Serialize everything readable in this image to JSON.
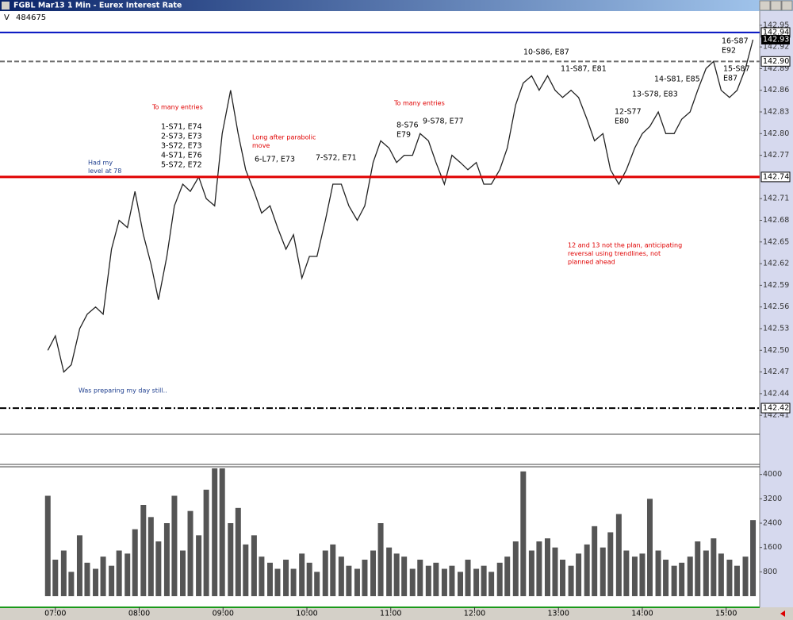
{
  "window": {
    "title": "FGBL Mar13 1 Min - Eurex Interest Rate",
    "row_letter": "V",
    "row_value": "484675"
  },
  "chart_data": [
    {
      "type": "line",
      "color": "#222222",
      "x": [
        6.91,
        7.0,
        7.1,
        7.19,
        7.29,
        7.38,
        7.48,
        7.57,
        7.67,
        7.76,
        7.86,
        7.95,
        8.05,
        8.14,
        8.23,
        8.33,
        8.42,
        8.52,
        8.61,
        8.71,
        8.8,
        8.9,
        8.99,
        9.09,
        9.18,
        9.27,
        9.37,
        9.46,
        9.56,
        9.65,
        9.75,
        9.84,
        9.94,
        10.03,
        10.12,
        10.22,
        10.31,
        10.41,
        10.5,
        10.6,
        10.69,
        10.79,
        10.88,
        10.98,
        11.07,
        11.16,
        11.26,
        11.35,
        11.45,
        11.54,
        11.64,
        11.73,
        11.83,
        11.92,
        12.02,
        12.11,
        12.2,
        12.3,
        12.39,
        12.49,
        12.58,
        12.68,
        12.77,
        12.87,
        12.96,
        13.05,
        13.15,
        13.24,
        13.34,
        13.43,
        13.53,
        13.62,
        13.72,
        13.81,
        13.91,
        14.0,
        14.09,
        14.19,
        14.28,
        14.38,
        14.47,
        14.57,
        14.66,
        14.76,
        14.85,
        14.94,
        15.04,
        15.13,
        15.23,
        15.32
      ],
      "values": [
        142.5,
        142.52,
        142.47,
        142.48,
        142.53,
        142.55,
        142.56,
        142.55,
        142.64,
        142.68,
        142.67,
        142.72,
        142.66,
        142.62,
        142.57,
        142.63,
        142.7,
        142.73,
        142.72,
        142.74,
        142.71,
        142.7,
        142.8,
        142.86,
        142.8,
        142.75,
        142.72,
        142.69,
        142.7,
        142.67,
        142.64,
        142.66,
        142.6,
        142.63,
        142.63,
        142.68,
        142.73,
        142.73,
        142.7,
        142.68,
        142.7,
        142.76,
        142.79,
        142.78,
        142.76,
        142.77,
        142.77,
        142.8,
        142.79,
        142.76,
        142.73,
        142.77,
        142.76,
        142.75,
        142.76,
        142.73,
        142.73,
        142.75,
        142.78,
        142.84,
        142.87,
        142.88,
        142.86,
        142.88,
        142.86,
        142.85,
        142.86,
        142.85,
        142.82,
        142.79,
        142.8,
        142.75,
        142.73,
        142.75,
        142.78,
        142.8,
        142.81,
        142.83,
        142.8,
        142.8,
        142.82,
        142.83,
        142.86,
        142.89,
        142.9,
        142.86,
        142.85,
        142.86,
        142.89,
        142.93
      ],
      "xlim": [
        6.34,
        15.4
      ],
      "ylim": [
        142.386,
        142.952
      ],
      "yticks": [
        142.95,
        142.92,
        142.89,
        {
          "value": 142.86,
          "label": "142.86"
        },
        142.83,
        {
          "value": 142.8,
          "label": "142.80"
        },
        142.77,
        142.71,
        142.68,
        142.65,
        142.62,
        142.59,
        142.56,
        142.53,
        {
          "value": 142.5,
          "label": "142.50"
        },
        142.47,
        142.44,
        142.41
      ],
      "last_price": 142.93,
      "levels": [
        {
          "value": 142.94,
          "color": "#0010c0",
          "style": "solid"
        },
        {
          "value": {
            "value": 142.9,
            "label": "142.90"
          },
          "color": "#707070",
          "style": "dashed"
        },
        {
          "value": 142.74,
          "color": "#e00000",
          "style": "thick"
        },
        {
          "value": 142.42,
          "color": "#000000",
          "style": "dashdot"
        }
      ],
      "annotations": [
        {
          "lines": [
            "To many entries"
          ],
          "color": "#e00000"
        },
        {
          "lines": [
            "1-S71, E74",
            "2-S73, E73",
            "3-S72, E73",
            "4-S71, E76",
            "5-S72, E72"
          ],
          "color": "#000000"
        },
        {
          "lines": [
            "Had my",
            "level at 78"
          ],
          "color": "#1f3f8f"
        },
        {
          "lines": [
            "Long after parabolic",
            "move"
          ],
          "color": "#e00000"
        },
        {
          "lines": [
            "6-L77, E73"
          ],
          "color": "#000000"
        },
        {
          "lines": [
            "7-S72, E71"
          ],
          "color": "#000000"
        },
        {
          "lines": [
            "To many entries"
          ],
          "color": "#e00000"
        },
        {
          "lines": [
            "8-S76",
            "E79"
          ],
          "color": "#000000"
        },
        {
          "lines": [
            "9-S78, E77"
          ],
          "color": "#000000"
        },
        {
          "lines": [
            "10-S86, E87"
          ],
          "color": "#000000"
        },
        {
          "lines": [
            "11-S87, E81"
          ],
          "color": "#000000"
        },
        {
          "lines": [
            "12-S77",
            "E80"
          ],
          "color": "#000000"
        },
        {
          "lines": [
            "13-S78, E83"
          ],
          "color": "#000000"
        },
        {
          "lines": [
            "14-S81, E85"
          ],
          "color": "#000000"
        },
        {
          "lines": [
            "16-S87",
            "E92"
          ],
          "color": "#000000"
        },
        {
          "lines": [
            "15-S87",
            "E87"
          ],
          "color": "#000000"
        },
        {
          "lines": [
            "12 and 13 not the plan, anticipating",
            "reversal using trendlines, not",
            "planned ahead"
          ],
          "color": "#e00000"
        },
        {
          "lines": [
            "Was preparing my day still.."
          ],
          "color": "#1f3f8f"
        }
      ]
    },
    {
      "type": "bar",
      "color": "#555555",
      "x": [
        6.91,
        7.0,
        7.1,
        7.19,
        7.29,
        7.38,
        7.48,
        7.57,
        7.67,
        7.76,
        7.86,
        7.95,
        8.05,
        8.14,
        8.23,
        8.33,
        8.42,
        8.52,
        8.61,
        8.71,
        8.8,
        8.9,
        8.99,
        9.09,
        9.18,
        9.27,
        9.37,
        9.46,
        9.56,
        9.65,
        9.75,
        9.84,
        9.94,
        10.03,
        10.12,
        10.22,
        10.31,
        10.41,
        10.5,
        10.6,
        10.69,
        10.79,
        10.88,
        10.98,
        11.07,
        11.16,
        11.26,
        11.35,
        11.45,
        11.54,
        11.64,
        11.73,
        11.83,
        11.92,
        12.02,
        12.11,
        12.2,
        12.3,
        12.39,
        12.49,
        12.58,
        12.68,
        12.77,
        12.87,
        12.96,
        13.05,
        13.15,
        13.24,
        13.34,
        13.43,
        13.53,
        13.62,
        13.72,
        13.81,
        13.91,
        14.0,
        14.09,
        14.19,
        14.28,
        14.38,
        14.47,
        14.57,
        14.66,
        14.76,
        14.85,
        14.94,
        15.04,
        15.13,
        15.23,
        15.32
      ],
      "values": [
        3300,
        1200,
        1500,
        800,
        2000,
        1100,
        900,
        1300,
        1000,
        1500,
        1400,
        2200,
        3000,
        2600,
        1800,
        2400,
        3300,
        1500,
        2800,
        2000,
        3500,
        4200,
        4200,
        2400,
        2900,
        1700,
        2000,
        1300,
        1100,
        900,
        1200,
        900,
        1400,
        1100,
        800,
        1500,
        1700,
        1300,
        1000,
        900,
        1200,
        1500,
        2400,
        1600,
        1400,
        1300,
        900,
        1200,
        1000,
        1100,
        900,
        1000,
        800,
        1200,
        900,
        1000,
        800,
        1100,
        1300,
        1800,
        4100,
        1500,
        1800,
        1900,
        1600,
        1200,
        1000,
        1400,
        1700,
        2300,
        1600,
        2100,
        2700,
        1500,
        1300,
        1400,
        3200,
        1500,
        1200,
        1000,
        1100,
        1300,
        1800,
        1500,
        1900,
        1400,
        1200,
        1000,
        1300,
        2500
      ],
      "xlim": [
        6.34,
        15.4
      ],
      "ylim": [
        0,
        4200
      ],
      "yticks": [
        800,
        1600,
        2400,
        3200,
        4000
      ],
      "xticks": [
        {
          "value": 7,
          "label": "07:00"
        },
        {
          "value": 8,
          "label": "08:00"
        },
        {
          "value": 9,
          "label": "09:00"
        },
        {
          "value": 10,
          "label": "10:00"
        },
        {
          "value": 11,
          "label": "11:00"
        },
        {
          "value": 12,
          "label": "12:00"
        },
        {
          "value": 13,
          "label": "13:00"
        },
        {
          "value": 14,
          "label": "14:00"
        },
        {
          "value": 15,
          "label": "15:00"
        }
      ]
    }
  ]
}
